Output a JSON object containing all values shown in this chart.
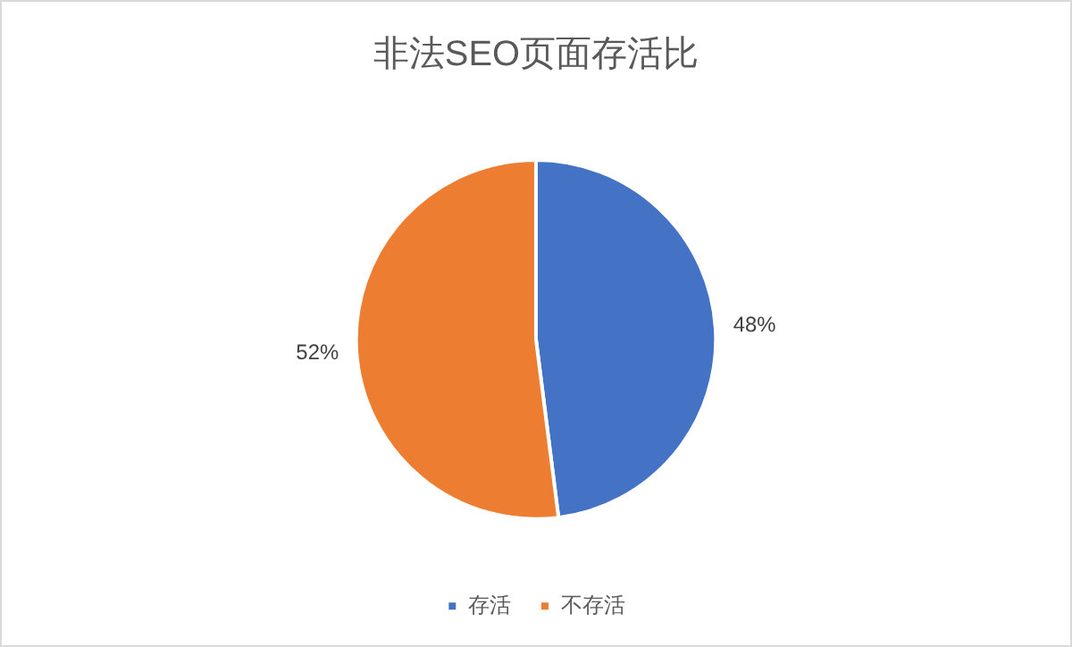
{
  "chart_data": {
    "type": "pie",
    "title": "非法SEO页面存活比",
    "categories": [
      "存活",
      "不存活"
    ],
    "values": [
      48,
      52
    ],
    "colors": [
      "#4472c4",
      "#ed7d31"
    ],
    "value_labels": [
      "48%",
      "52%"
    ],
    "legend": "bottom"
  }
}
